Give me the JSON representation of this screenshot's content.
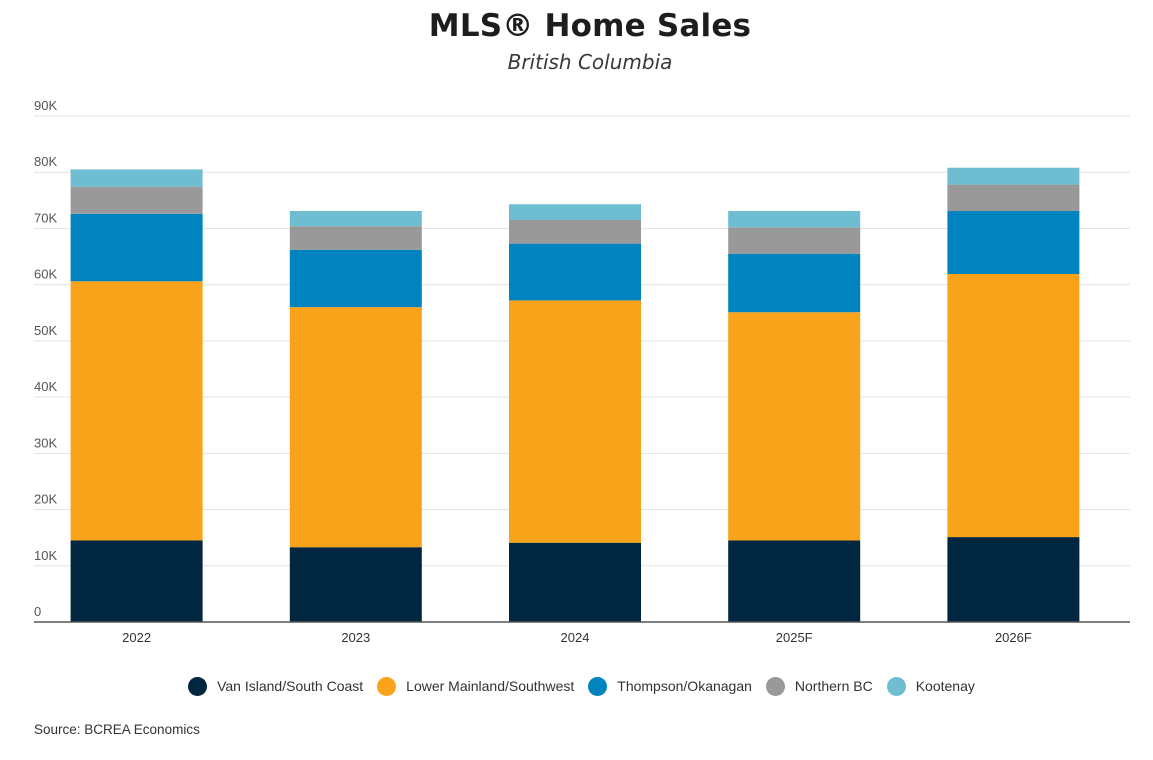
{
  "chart_data": {
    "type": "bar",
    "stacked": true,
    "title": "MLS® Home Sales",
    "subtitle": "British Columbia",
    "categories": [
      "2022",
      "2023",
      "2024",
      "2025F",
      "2026F"
    ],
    "series": [
      {
        "name": "Van Island/South Coast",
        "color": "#002640",
        "values": [
          14500,
          13300,
          14100,
          14500,
          15100
        ]
      },
      {
        "name": "Lower Mainland/Southwest",
        "color": "#f9a31b",
        "values": [
          46100,
          42700,
          43100,
          40600,
          46800
        ]
      },
      {
        "name": "Thompson/Okanagan",
        "color": "#0083be",
        "values": [
          12000,
          10200,
          10100,
          10400,
          11200
        ]
      },
      {
        "name": "Northern BC",
        "color": "#999999",
        "values": [
          4800,
          4200,
          4200,
          4700,
          4700
        ]
      },
      {
        "name": "Kootenay",
        "color": "#6ebdd1",
        "values": [
          3100,
          2700,
          2800,
          2900,
          3000
        ]
      }
    ],
    "y_ticks": [
      {
        "value": 0,
        "label": "0"
      },
      {
        "value": 10000,
        "label": "10K"
      },
      {
        "value": 20000,
        "label": "20K"
      },
      {
        "value": 30000,
        "label": "30K"
      },
      {
        "value": 40000,
        "label": "40K"
      },
      {
        "value": 50000,
        "label": "50K"
      },
      {
        "value": 60000,
        "label": "60K"
      },
      {
        "value": 70000,
        "label": "70K"
      },
      {
        "value": 80000,
        "label": "80K"
      },
      {
        "value": 90000,
        "label": "90K"
      }
    ],
    "ylim": [
      0,
      90000
    ],
    "xlabel": "",
    "ylabel": "",
    "grid": true,
    "legend_position": "bottom"
  },
  "source": "Source: BCREA Economics"
}
